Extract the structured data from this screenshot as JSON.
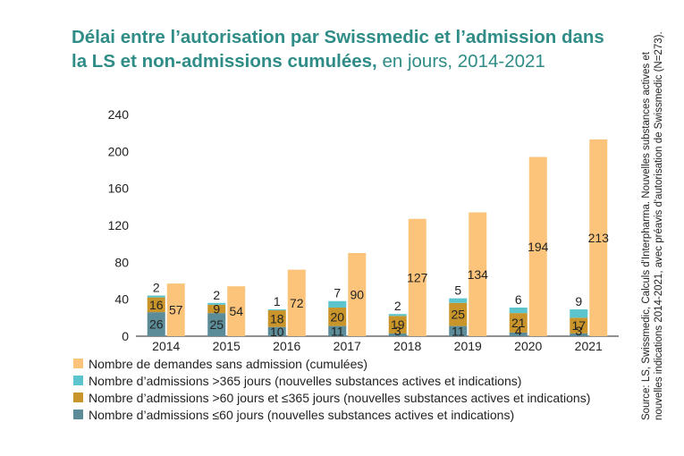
{
  "title": {
    "bold": "Délai entre l’autorisation par Swissmedic et l’admission dans la LS et non-admissions cumulées,",
    "light": " en jours, 2014-2021"
  },
  "source": "Source: LS, Swissmedic, Calculs d'Interpharma. Nouvelles substances actives et nouvelles indications 2014-2021, avec préavis d'autorisation de Swissmedic (N=273).",
  "colors": {
    "non_admissions": "#fcc47a",
    "over365": "#5bc4cc",
    "60to365": "#c9952a",
    "under60": "#5b8c97"
  },
  "chart_data": {
    "type": "bar",
    "categories": [
      "2014",
      "2015",
      "2016",
      "2017",
      "2018",
      "2019",
      "2020",
      "2021"
    ],
    "ylim": [
      0,
      240
    ],
    "yticks": [
      0,
      40,
      80,
      120,
      160,
      200,
      240
    ],
    "stacked_series": [
      {
        "name": "Nombre d’admissions ≤60 jours (nouvelles substances actives et indications)",
        "key": "under60",
        "values": [
          26,
          25,
          10,
          11,
          3,
          11,
          4,
          3
        ]
      },
      {
        "name": "Nombre d’admissions >60 jours et ≤365 jours (nouvelles substances actives et indications)",
        "key": "60to365",
        "values": [
          16,
          9,
          18,
          20,
          19,
          25,
          21,
          17
        ]
      },
      {
        "name": "Nombre d’admissions >365 jours (nouvelles substances actives et indications)",
        "key": "over365",
        "values": [
          2,
          2,
          1,
          7,
          2,
          5,
          6,
          9
        ]
      }
    ],
    "separate_series": {
      "name": "Nombre de demandes sans admission (cumulées)",
      "key": "non_admissions",
      "values": [
        57,
        54,
        72,
        90,
        127,
        134,
        194,
        213
      ]
    },
    "legend": [
      {
        "key": "non_admissions",
        "label": "Nombre de demandes sans admission (cumulées)"
      },
      {
        "key": "over365",
        "label": "Nombre d’admissions >365 jours (nouvelles substances actives et indications)"
      },
      {
        "key": "60to365",
        "label": "Nombre d’admissions >60 jours et ≤365 jours (nouvelles substances actives et indications)"
      },
      {
        "key": "under60",
        "label": "Nombre d’admissions ≤60 jours (nouvelles substances actives et indications)"
      }
    ]
  }
}
